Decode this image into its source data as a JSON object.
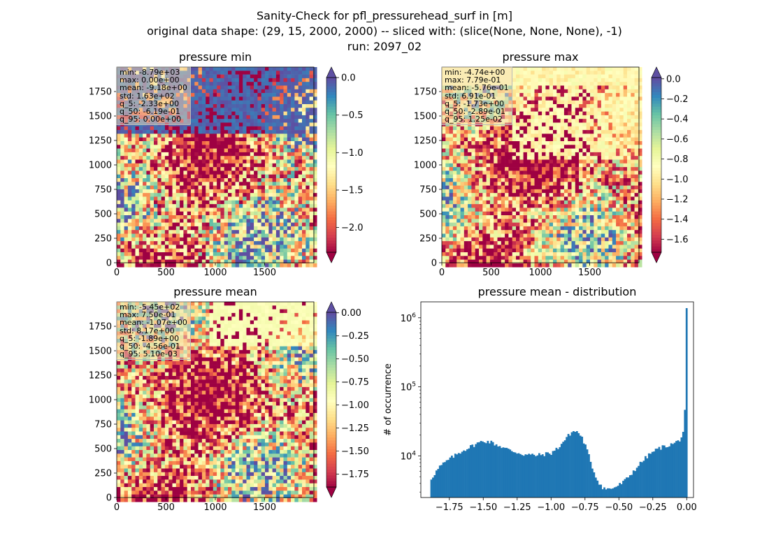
{
  "figure": {
    "title_line1": "Sanity-Check for pfl_pressurehead_surf in [m]",
    "title_line2": "original data shape: (29, 15, 2000, 2000) -- sliced with: (slice(None, None, None), -1)",
    "title_line3": "run: 2097_02"
  },
  "colors": {
    "spectral": [
      "#9e0142",
      "#d53e4f",
      "#f46d43",
      "#fdae61",
      "#fee08b",
      "#ffffbf",
      "#e6f598",
      "#abdda4",
      "#66c2a5",
      "#3288bd",
      "#5e4fa2"
    ],
    "histogram_bar": "#1f77b4"
  },
  "panels": {
    "min": {
      "title": "pressure min",
      "stats": [
        "min: -8.79e+03",
        "max: 0.00e+00",
        "mean: -9.18e+00",
        "std: 1.63e+02",
        "q_5: -2.33e+00",
        "q_50: -6.19e-01",
        "q_95: 0.00e+00"
      ],
      "x_ticks": [
        "0",
        "500",
        "1000",
        "1500"
      ],
      "y_ticks": [
        "0",
        "250",
        "500",
        "750",
        "1000",
        "1250",
        "1500",
        "1750"
      ],
      "colorbar_range": [
        -2.33,
        0.0
      ],
      "colorbar_ticks": [
        "0.0",
        "−0.5",
        "−1.0",
        "−1.5",
        "−2.0"
      ],
      "colorbar_tick_values": [
        0.0,
        -0.5,
        -1.0,
        -1.5,
        -2.0
      ],
      "extend": "both"
    },
    "max": {
      "title": "pressure max",
      "stats": [
        "min: -4.74e+00",
        "max: 7.79e-01",
        "mean: -5.76e-01",
        "std: 6.91e-01",
        "q_5: -1.73e+00",
        "q_50: -2.89e-01",
        "q_95: 1.25e-02"
      ],
      "x_ticks": [
        "0",
        "500",
        "1000",
        "1500"
      ],
      "y_ticks": [
        "0",
        "250",
        "500",
        "750",
        "1000",
        "1250",
        "1500",
        "1750"
      ],
      "colorbar_range": [
        -1.73,
        0.0125
      ],
      "colorbar_ticks": [
        "0.0",
        "−0.2",
        "−0.4",
        "−0.6",
        "−0.8",
        "−1.0",
        "−1.2",
        "−1.4",
        "−1.6"
      ],
      "colorbar_tick_values": [
        0.0,
        -0.2,
        -0.4,
        -0.6,
        -0.8,
        -1.0,
        -1.2,
        -1.4,
        -1.6
      ],
      "extend": "both"
    },
    "mean": {
      "title": "pressure mean",
      "stats": [
        "min: -5.45e+02",
        "max: 7.50e-01",
        "mean: -1.07e+00",
        "std: 8.17e+00",
        "q_5: -1.89e+00",
        "q_50: -4.56e-01",
        "q_95: 5.10e-03"
      ],
      "x_ticks": [
        "0",
        "500",
        "1000",
        "1500"
      ],
      "y_ticks": [
        "0",
        "250",
        "500",
        "750",
        "1000",
        "1250",
        "1500",
        "1750"
      ],
      "colorbar_range": [
        -1.89,
        0.0051
      ],
      "colorbar_ticks": [
        "0.00",
        "−0.25",
        "−0.50",
        "−0.75",
        "−1.00",
        "−1.25",
        "−1.50",
        "−1.75"
      ],
      "colorbar_tick_values": [
        0.0,
        -0.25,
        -0.5,
        -0.75,
        -1.0,
        -1.25,
        -1.5,
        -1.75
      ],
      "extend": "both"
    }
  },
  "chart_data": {
    "type": "bar",
    "title": "pressure mean - distribution",
    "ylabel": "# of occurrence",
    "xlabel": "",
    "yscale": "log",
    "ylim": [
      2500,
      1700000
    ],
    "xlim": [
      -1.96,
      0.05
    ],
    "x_ticks": [
      "−1.75",
      "−1.50",
      "−1.25",
      "−1.00",
      "−0.75",
      "−0.50",
      "−0.25",
      "0.00"
    ],
    "x_tick_values": [
      -1.75,
      -1.5,
      -1.25,
      -1.0,
      -0.75,
      -0.5,
      -0.25,
      0.0
    ],
    "y_ticks": [
      "10^4",
      "10^5",
      "10^6"
    ],
    "y_tick_values": [
      10000,
      100000,
      1000000
    ],
    "bin_range": [
      -1.89,
      0.0051
    ],
    "curve_x": [
      -1.89,
      -1.86,
      -1.82,
      -1.75,
      -1.65,
      -1.55,
      -1.5,
      -1.45,
      -1.4,
      -1.3,
      -1.2,
      -1.1,
      -1.0,
      -0.95,
      -0.9,
      -0.86,
      -0.83,
      -0.8,
      -0.77,
      -0.74,
      -0.71,
      -0.68,
      -0.65,
      -0.62,
      -0.59,
      -0.56,
      -0.52,
      -0.48,
      -0.44,
      -0.4,
      -0.35,
      -0.3,
      -0.25,
      -0.2,
      -0.15,
      -0.1,
      -0.06,
      -0.04,
      -0.03,
      -0.02,
      -0.01,
      0.0
    ],
    "curve_y": [
      4500,
      5500,
      7000,
      9000,
      12000,
      15000,
      16500,
      16000,
      14500,
      12000,
      10500,
      10200,
      11000,
      13000,
      17000,
      21000,
      23000,
      22000,
      18000,
      13000,
      8500,
      5500,
      4200,
      3500,
      3300,
      3350,
      3600,
      4000,
      4700,
      5800,
      7500,
      9500,
      11500,
      13000,
      14000,
      15000,
      16500,
      18500,
      21000,
      26000,
      60000,
      1380000
    ]
  }
}
